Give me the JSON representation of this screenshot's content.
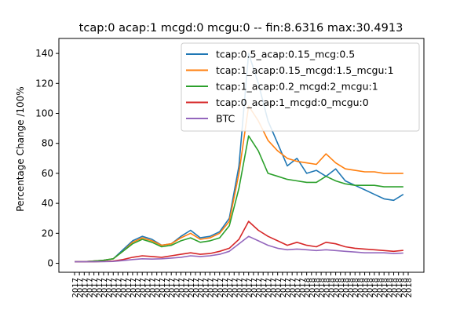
{
  "chart_data": {
    "type": "line",
    "title": "tcap:0 acap:1 mcgd:0 mcgu:0 -- fin:8.6316 max:30.4913",
    "xlabel": "",
    "ylabel": "Percentage Change /100%",
    "ylim": [
      -6,
      150
    ],
    "yticks": [
      0,
      20,
      40,
      60,
      80,
      100,
      120,
      140
    ],
    "xtick_labels": [
      "2017",
      "2017",
      "2017",
      "2017",
      "2017",
      "2017",
      "2017",
      "2017",
      "2017",
      "2017",
      "2017",
      "2017",
      "2017",
      "2017",
      "2017",
      "2017",
      "2017",
      "2017",
      "2017",
      "2017",
      "2017",
      "2017",
      "2017",
      "2017",
      "2017",
      "2017",
      "2017",
      "2017",
      "2017",
      "2017",
      "2017",
      "2017",
      "2017",
      "2017",
      "2017",
      "2017",
      "2017",
      "2017",
      "2017",
      "2017",
      "2017",
      "2017",
      "2017",
      "2017",
      "2017",
      "2017",
      "2017",
      "2017",
      "2018",
      "2018",
      "2018",
      "2018",
      "2018",
      "2018",
      "2018",
      "2018",
      "2018",
      "2018",
      "2018",
      "2018",
      "2018",
      "2018",
      "2018",
      "2018",
      "2018",
      "2018",
      "2018",
      "2018",
      "2018",
      "2018"
    ],
    "xlim": [
      0,
      69
    ],
    "grid": false,
    "legend_position": "upper right",
    "x": [
      0,
      2,
      4,
      6,
      8,
      10,
      12,
      14,
      16,
      18,
      20,
      22,
      24,
      26,
      28,
      30,
      32,
      34,
      36,
      38,
      40,
      42,
      44,
      46,
      48,
      50,
      52,
      54,
      56,
      58,
      60,
      62,
      64,
      66,
      68
    ],
    "series": [
      {
        "name": "tcap:0.5_acap:0.15_mcg:0.5",
        "color": "#1f77b4",
        "values": [
          1,
          1,
          1.5,
          2,
          3,
          9,
          15,
          18,
          16,
          12,
          13,
          18,
          22,
          17,
          18,
          21,
          30,
          65,
          140,
          120,
          95,
          80,
          65,
          70,
          60,
          62,
          58,
          63,
          55,
          52,
          49,
          46,
          43,
          42,
          46
        ]
      },
      {
        "name": "tcap:1_acap:0.15_mcgd:1.5_mcgu:1",
        "color": "#ff7f0e",
        "values": [
          1,
          1,
          1.5,
          2,
          3,
          8,
          14,
          17,
          15,
          12,
          13,
          17,
          20,
          16,
          17,
          20,
          28,
          60,
          105,
          95,
          82,
          75,
          70,
          68,
          67,
          66,
          73,
          67,
          63,
          62,
          61,
          61,
          60,
          60,
          60
        ]
      },
      {
        "name": "tcap:1_acap:0.2_mcgd:2_mcgu:1",
        "color": "#2ca02c",
        "values": [
          1,
          1,
          1.5,
          2,
          3,
          8,
          13,
          16,
          14,
          11,
          12,
          15,
          17,
          14,
          15,
          17,
          25,
          50,
          85,
          75,
          60,
          58,
          56,
          55,
          54,
          54,
          58,
          55,
          53,
          52,
          52,
          52,
          51,
          51,
          51
        ]
      },
      {
        "name": "tcap:0_acap:1_mcgd:0_mcgu:0",
        "color": "#d62728",
        "values": [
          1,
          1,
          1,
          1.2,
          1.5,
          2.5,
          4,
          5,
          4.5,
          4,
          5,
          6,
          7,
          6,
          6.5,
          8,
          10,
          16,
          28,
          22,
          18,
          15,
          12,
          14,
          12,
          11,
          14,
          13,
          11,
          10,
          9.5,
          9,
          8.5,
          8,
          8.6
        ]
      },
      {
        "name": "BTC",
        "color": "#9467bd",
        "values": [
          1,
          1,
          1,
          1.1,
          1.2,
          1.8,
          2.5,
          3,
          2.8,
          3,
          3.5,
          4,
          5,
          4.5,
          5,
          6,
          8,
          13,
          18,
          15,
          12,
          10,
          9,
          9.5,
          9,
          8.5,
          9,
          8.5,
          8,
          7.5,
          7,
          7,
          7,
          6.5,
          6.8
        ]
      }
    ]
  }
}
